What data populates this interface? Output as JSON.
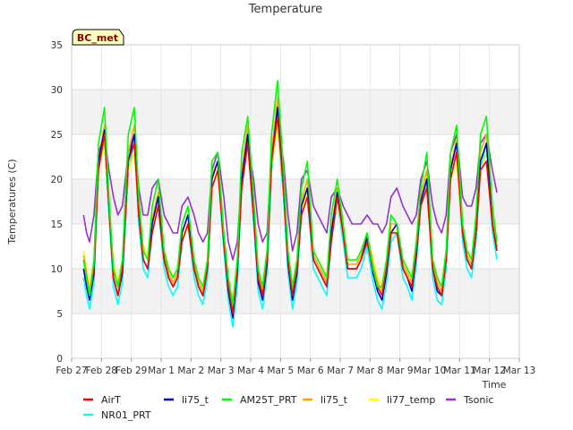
{
  "chart_data": {
    "type": "line",
    "title": "Temperature",
    "badge": "BC_met",
    "xlabel": "Time",
    "ylabel": "Temperatures (C)",
    "ylim": [
      0,
      35
    ],
    "yticks": [
      0,
      5,
      10,
      15,
      20,
      25,
      30,
      35
    ],
    "xlim": [
      0,
      15
    ],
    "xticks": [
      {
        "x": 0,
        "label": "Feb 27"
      },
      {
        "x": 1,
        "label": "Feb 28"
      },
      {
        "x": 2,
        "label": "Feb 29"
      },
      {
        "x": 3,
        "label": "Mar 1"
      },
      {
        "x": 4,
        "label": "Mar 2"
      },
      {
        "x": 5,
        "label": "Mar 3"
      },
      {
        "x": 6,
        "label": "Mar 4"
      },
      {
        "x": 7,
        "label": "Mar 5"
      },
      {
        "x": 8,
        "label": "Mar 6"
      },
      {
        "x": 9,
        "label": "Mar 7"
      },
      {
        "x": 10,
        "label": "Mar 8"
      },
      {
        "x": 11,
        "label": "Mar 9"
      },
      {
        "x": 12,
        "label": "Mar 10"
      },
      {
        "x": 13,
        "label": "Mar 11"
      },
      {
        "x": 14,
        "label": "Mar 12"
      },
      {
        "x": 15,
        "label": "Mar 13"
      }
    ],
    "grid": true,
    "background_bands": "alternating light gray",
    "legend_position": "bottom",
    "series": [
      {
        "name": "AirT",
        "color": "#ff0000",
        "x": [
          0.4,
          0.5,
          0.6,
          0.75,
          0.9,
          1.1,
          1.25,
          1.4,
          1.55,
          1.7,
          1.9,
          2.1,
          2.25,
          2.4,
          2.55,
          2.7,
          2.9,
          3.1,
          3.25,
          3.4,
          3.55,
          3.7,
          3.9,
          4.1,
          4.25,
          4.4,
          4.55,
          4.7,
          4.9,
          5.1,
          5.25,
          5.4,
          5.55,
          5.7,
          5.9,
          6.1,
          6.25,
          6.4,
          6.55,
          6.7,
          6.9,
          7.1,
          7.25,
          7.4,
          7.55,
          7.7,
          7.9,
          8.1,
          8.25,
          8.4,
          8.55,
          8.7,
          8.9,
          9.1,
          9.25,
          9.4,
          9.55,
          9.7,
          9.9,
          10.1,
          10.25,
          10.4,
          10.55,
          10.7,
          10.9,
          11.1,
          11.25,
          11.4,
          11.55,
          11.7,
          11.9,
          12.1,
          12.25,
          12.4,
          12.55,
          12.7,
          12.9,
          13.1,
          13.25,
          13.4,
          13.55,
          13.7,
          13.9,
          14.1,
          14.25
        ],
        "y": [
          11,
          9,
          7,
          10,
          21,
          25,
          17,
          9,
          7,
          10,
          22,
          24,
          16,
          11,
          10,
          14,
          17,
          11,
          9,
          8,
          9,
          13,
          15,
          10,
          8,
          7,
          10,
          19,
          21,
          13,
          8,
          5,
          10,
          19,
          24,
          16,
          9,
          7,
          11,
          22,
          27,
          19,
          11,
          7,
          10,
          16,
          18,
          11,
          10,
          9,
          8,
          13,
          18,
          14,
          10,
          10,
          10,
          11,
          13,
          10,
          8,
          7,
          10,
          14,
          14,
          10,
          9,
          8,
          12,
          17,
          19,
          10,
          8,
          7,
          11,
          20,
          23,
          14,
          11,
          10,
          14,
          21,
          22,
          15,
          12
        ]
      },
      {
        "name": "li75_t",
        "color": "#0000cc",
        "x": [
          0.4,
          0.5,
          0.6,
          0.75,
          0.9,
          1.1,
          1.25,
          1.4,
          1.55,
          1.7,
          1.9,
          2.1,
          2.25,
          2.4,
          2.55,
          2.7,
          2.9,
          3.1,
          3.25,
          3.4,
          3.55,
          3.7,
          3.9,
          4.1,
          4.25,
          4.4,
          4.55,
          4.7,
          4.9,
          5.1,
          5.25,
          5.4,
          5.55,
          5.7,
          5.9,
          6.1,
          6.25,
          6.4,
          6.55,
          6.7,
          6.9,
          7.1,
          7.25,
          7.4,
          7.55,
          7.7,
          7.9,
          8.1,
          8.25,
          8.4,
          8.55,
          8.7,
          8.9,
          9.1,
          9.25,
          9.4,
          9.55,
          9.7,
          9.9,
          10.1,
          10.25,
          10.4,
          10.55,
          10.7,
          10.9,
          11.1,
          11.25,
          11.4,
          11.55,
          11.7,
          11.9,
          12.1,
          12.25,
          12.4,
          12.55,
          12.7,
          12.9,
          13.1,
          13.25,
          13.4,
          13.55,
          13.7,
          13.9,
          14.1,
          14.25
        ],
        "y": [
          10,
          8,
          6.5,
          9.5,
          22,
          25.5,
          17,
          9,
          7,
          9.5,
          22,
          25,
          16,
          11,
          10,
          15,
          18,
          11,
          9,
          8,
          9,
          14,
          16,
          10,
          8,
          7,
          10,
          20,
          22,
          13,
          7.5,
          4.5,
          9.5,
          20,
          25,
          16,
          8.5,
          6.5,
          10.5,
          22,
          28,
          19,
          10.5,
          6.5,
          9.5,
          17,
          19,
          11,
          10,
          9,
          8,
          14,
          18.5,
          14,
          10,
          10,
          10,
          11,
          13.5,
          9.5,
          7.5,
          6.5,
          9.5,
          14,
          15,
          10,
          9,
          7.5,
          11.5,
          17.5,
          20,
          10,
          7.5,
          7,
          11,
          21,
          24,
          14,
          11,
          10,
          14,
          22,
          24,
          15,
          12
        ]
      },
      {
        "name": "AM25T_PRT",
        "color": "#00ff00",
        "x": [
          0.4,
          0.5,
          0.6,
          0.75,
          0.9,
          1.1,
          1.25,
          1.4,
          1.55,
          1.7,
          1.9,
          2.1,
          2.25,
          2.4,
          2.55,
          2.7,
          2.9,
          3.1,
          3.25,
          3.4,
          3.55,
          3.7,
          3.9,
          4.1,
          4.25,
          4.4,
          4.55,
          4.7,
          4.9,
          5.1,
          5.25,
          5.4,
          5.55,
          5.7,
          5.9,
          6.1,
          6.25,
          6.4,
          6.55,
          6.7,
          6.9,
          7.1,
          7.25,
          7.4,
          7.55,
          7.7,
          7.9,
          8.1,
          8.25,
          8.4,
          8.55,
          8.7,
          8.9,
          9.1,
          9.25,
          9.4,
          9.55,
          9.7,
          9.9,
          10.1,
          10.25,
          10.4,
          10.55,
          10.7,
          10.9,
          11.1,
          11.25,
          11.4,
          11.55,
          11.7,
          11.9,
          12.1,
          12.25,
          12.4,
          12.55,
          12.7,
          12.9,
          13.1,
          13.25,
          13.4,
          13.55,
          13.7,
          13.9,
          14.1,
          14.25
        ],
        "y": [
          11,
          9,
          7,
          11,
          24,
          28,
          18,
          10,
          8,
          11,
          25,
          28,
          18,
          12,
          11,
          17,
          20,
          12,
          10,
          9,
          10,
          15,
          17,
          11,
          9,
          8,
          11,
          22,
          23,
          14,
          9,
          6,
          11,
          23,
          27,
          18,
          10,
          8,
          12,
          25,
          31,
          21,
          12,
          8,
          11,
          19,
          22,
          12,
          11,
          10,
          9,
          16,
          20,
          15,
          11,
          11,
          11,
          12,
          14,
          10,
          8,
          8,
          11,
          16,
          15,
          11,
          10,
          9,
          13,
          19,
          23,
          11,
          9,
          8,
          12,
          23,
          26,
          15,
          12,
          11,
          16,
          25,
          27,
          17,
          13
        ]
      },
      {
        "name": "li75_t",
        "color": "#ffa500",
        "x": [
          0.4,
          0.5,
          0.6,
          0.75,
          0.9,
          1.1,
          1.25,
          1.4,
          1.55,
          1.7,
          1.9,
          2.1,
          2.25,
          2.4,
          2.55,
          2.7,
          2.9,
          3.1,
          3.25,
          3.4,
          3.55,
          3.7,
          3.9,
          4.1,
          4.25,
          4.4,
          4.55,
          4.7,
          4.9,
          5.1,
          5.25,
          5.4,
          5.55,
          5.7,
          5.9,
          6.1,
          6.25,
          6.4,
          6.55,
          6.7,
          6.9,
          7.1,
          7.25,
          7.4,
          7.55,
          7.7,
          7.9,
          8.1,
          8.25,
          8.4,
          8.55,
          8.7,
          8.9,
          9.1,
          9.25,
          9.4,
          9.55,
          9.7,
          9.9,
          10.1,
          10.25,
          10.4,
          10.55,
          10.7,
          10.9,
          11.1,
          11.25,
          11.4,
          11.55,
          11.7,
          11.9,
          12.1,
          12.25,
          12.4,
          12.55,
          12.7,
          12.9,
          13.1,
          13.25,
          13.4,
          13.55,
          13.7,
          13.9,
          14.1,
          14.25
        ],
        "y": [
          11.5,
          9.5,
          7.5,
          10.5,
          22,
          26,
          17.5,
          10,
          8,
          10.5,
          23,
          26,
          17,
          12,
          11,
          15.5,
          18.5,
          11.5,
          9.5,
          8.5,
          9.5,
          14,
          16,
          10.5,
          8.5,
          7.5,
          10.5,
          20.5,
          22,
          13.5,
          8.5,
          5.5,
          10.5,
          21,
          26,
          17,
          9.5,
          7.5,
          11.5,
          23,
          29,
          20,
          11.5,
          7.5,
          10.5,
          17.5,
          20,
          11.5,
          10.5,
          9.5,
          8.5,
          14.5,
          19,
          14.5,
          10.5,
          10.5,
          10.5,
          11.5,
          14,
          10.5,
          8.5,
          7.5,
          10.5,
          15,
          15,
          10.5,
          9.5,
          8.5,
          12.5,
          18,
          21,
          10.5,
          8.5,
          7.5,
          11.5,
          21.5,
          24.5,
          14.5,
          11.5,
          10.5,
          14.5,
          23,
          25,
          15.5,
          12.5
        ]
      },
      {
        "name": "li77_temp",
        "color": "#ffff00",
        "x": [
          0.4,
          0.5,
          0.6,
          0.75,
          0.9,
          1.1,
          1.25,
          1.4,
          1.55,
          1.7,
          1.9,
          2.1,
          2.25,
          2.4,
          2.55,
          2.7,
          2.9,
          3.1,
          3.25,
          3.4,
          3.55,
          3.7,
          3.9,
          4.1,
          4.25,
          4.4,
          4.55,
          4.7,
          4.9,
          5.1,
          5.25,
          5.4,
          5.55,
          5.7,
          5.9,
          6.1,
          6.25,
          6.4,
          6.55,
          6.7,
          6.9,
          7.1,
          7.25,
          7.4,
          7.55,
          7.7,
          7.9,
          8.1,
          8.25,
          8.4,
          8.55,
          8.7,
          8.9,
          9.1,
          9.25,
          9.4,
          9.55,
          9.7,
          9.9,
          10.1,
          10.25,
          10.4,
          10.55,
          10.7,
          10.9,
          11.1,
          11.25,
          11.4,
          11.55,
          11.7,
          11.9,
          12.1,
          12.25,
          12.4,
          12.55,
          12.7,
          12.9,
          13.1,
          13.25,
          13.4,
          13.55,
          13.7,
          13.9,
          14.1,
          14.25
        ],
        "y": [
          12,
          10,
          8,
          11,
          21,
          24,
          17,
          10.5,
          8.5,
          11,
          21,
          23,
          16,
          12.5,
          11.5,
          15,
          17,
          12,
          10,
          9,
          10,
          13.5,
          15,
          11,
          9,
          8,
          11,
          19.5,
          20.5,
          14,
          9,
          6,
          11,
          19.5,
          24,
          16.5,
          10,
          8,
          12,
          21.5,
          26,
          19,
          12,
          8,
          11,
          16.5,
          18.5,
          12,
          11,
          10,
          9,
          14,
          17.5,
          14,
          11,
          11,
          11,
          12,
          13.5,
          11,
          9,
          8,
          11,
          14.5,
          14,
          11,
          10,
          9,
          13,
          17,
          19,
          11,
          9,
          8,
          12,
          20,
          22,
          14,
          12,
          11,
          14,
          21,
          23,
          15.5,
          13
        ]
      },
      {
        "name": "Tsonic",
        "color": "#9932cc",
        "x": [
          0.4,
          0.5,
          0.6,
          0.75,
          0.9,
          1.1,
          1.25,
          1.4,
          1.55,
          1.7,
          1.9,
          2.1,
          2.25,
          2.4,
          2.55,
          2.7,
          2.9,
          3.1,
          3.25,
          3.4,
          3.55,
          3.7,
          3.9,
          4.1,
          4.25,
          4.4,
          4.55,
          4.7,
          4.9,
          5.1,
          5.25,
          5.4,
          5.55,
          5.7,
          5.9,
          6.1,
          6.25,
          6.4,
          6.55,
          6.7,
          6.9,
          7.1,
          7.25,
          7.4,
          7.55,
          7.7,
          7.9,
          8.1,
          8.25,
          8.4,
          8.55,
          8.7,
          8.9,
          9.1,
          9.25,
          9.4,
          9.55,
          9.7,
          9.9,
          10.1,
          10.25,
          10.4,
          10.55,
          10.7,
          10.9,
          11.1,
          11.25,
          11.4,
          11.55,
          11.7,
          11.9,
          12.1,
          12.25,
          12.4,
          12.55,
          12.7,
          12.9,
          13.1,
          13.25,
          13.4,
          13.55,
          13.7,
          13.9,
          14.1,
          14.25
        ],
        "y": [
          16,
          14,
          13,
          16,
          23,
          25,
          21,
          18,
          16,
          17,
          23,
          25,
          19,
          16,
          16,
          19,
          20,
          16,
          15,
          14,
          14,
          17,
          18,
          16,
          14,
          13,
          14,
          21,
          23,
          18,
          13,
          11,
          13,
          20,
          24,
          20,
          15,
          13,
          14,
          23,
          26,
          22,
          16,
          12,
          14,
          20,
          21,
          17,
          16,
          15,
          14,
          18,
          19,
          17,
          16,
          15,
          15,
          15,
          16,
          15,
          15,
          14,
          15,
          18,
          19,
          17,
          16,
          15,
          16,
          20,
          22,
          17,
          15,
          14,
          16,
          23,
          25,
          18,
          17,
          17,
          19,
          24,
          25,
          21,
          18.5
        ]
      },
      {
        "name": "NR01_PRT",
        "color": "#00ffff",
        "x": [
          0.4,
          0.5,
          0.6,
          0.75,
          0.9,
          1.1,
          1.25,
          1.4,
          1.55,
          1.7,
          1.9,
          2.1,
          2.25,
          2.4,
          2.55,
          2.7,
          2.9,
          3.1,
          3.25,
          3.4,
          3.55,
          3.7,
          3.9,
          4.1,
          4.25,
          4.4,
          4.55,
          4.7,
          4.9,
          5.1,
          5.25,
          5.4,
          5.55,
          5.7,
          5.9,
          6.1,
          6.25,
          6.4,
          6.55,
          6.7,
          6.9,
          7.1,
          7.25,
          7.4,
          7.55,
          7.7,
          7.9,
          8.1,
          8.25,
          8.4,
          8.55,
          8.7,
          8.9,
          9.1,
          9.25,
          9.4,
          9.55,
          9.7,
          9.9,
          10.1,
          10.25,
          10.4,
          10.55,
          10.7,
          10.9,
          11.1,
          11.25,
          11.4,
          11.55,
          11.7,
          11.9,
          12.1,
          12.25,
          12.4,
          12.55,
          12.7,
          12.9,
          13.1,
          13.25,
          13.4,
          13.55,
          13.7,
          13.9,
          14.1,
          14.25
        ],
        "y": [
          9,
          7,
          5.5,
          8.5,
          21,
          24,
          16,
          8,
          6,
          8.5,
          21,
          24,
          15,
          10,
          9,
          14,
          17,
          10,
          8,
          7,
          8,
          13,
          15,
          9,
          7,
          6,
          9,
          19,
          21,
          12,
          6.5,
          3.5,
          8,
          19,
          24,
          15,
          7.5,
          5.5,
          9.5,
          21,
          26,
          18,
          9.5,
          5.5,
          8.5,
          16,
          18,
          10,
          9,
          8,
          7,
          13,
          17.5,
          13,
          9,
          9,
          9,
          10,
          12.5,
          8.5,
          6.5,
          5.5,
          8.5,
          13,
          14,
          9,
          8,
          6.5,
          10.5,
          17,
          20,
          9,
          6.5,
          6,
          10,
          20,
          23,
          13,
          10,
          9,
          13,
          21,
          24,
          14,
          11
        ]
      }
    ]
  }
}
